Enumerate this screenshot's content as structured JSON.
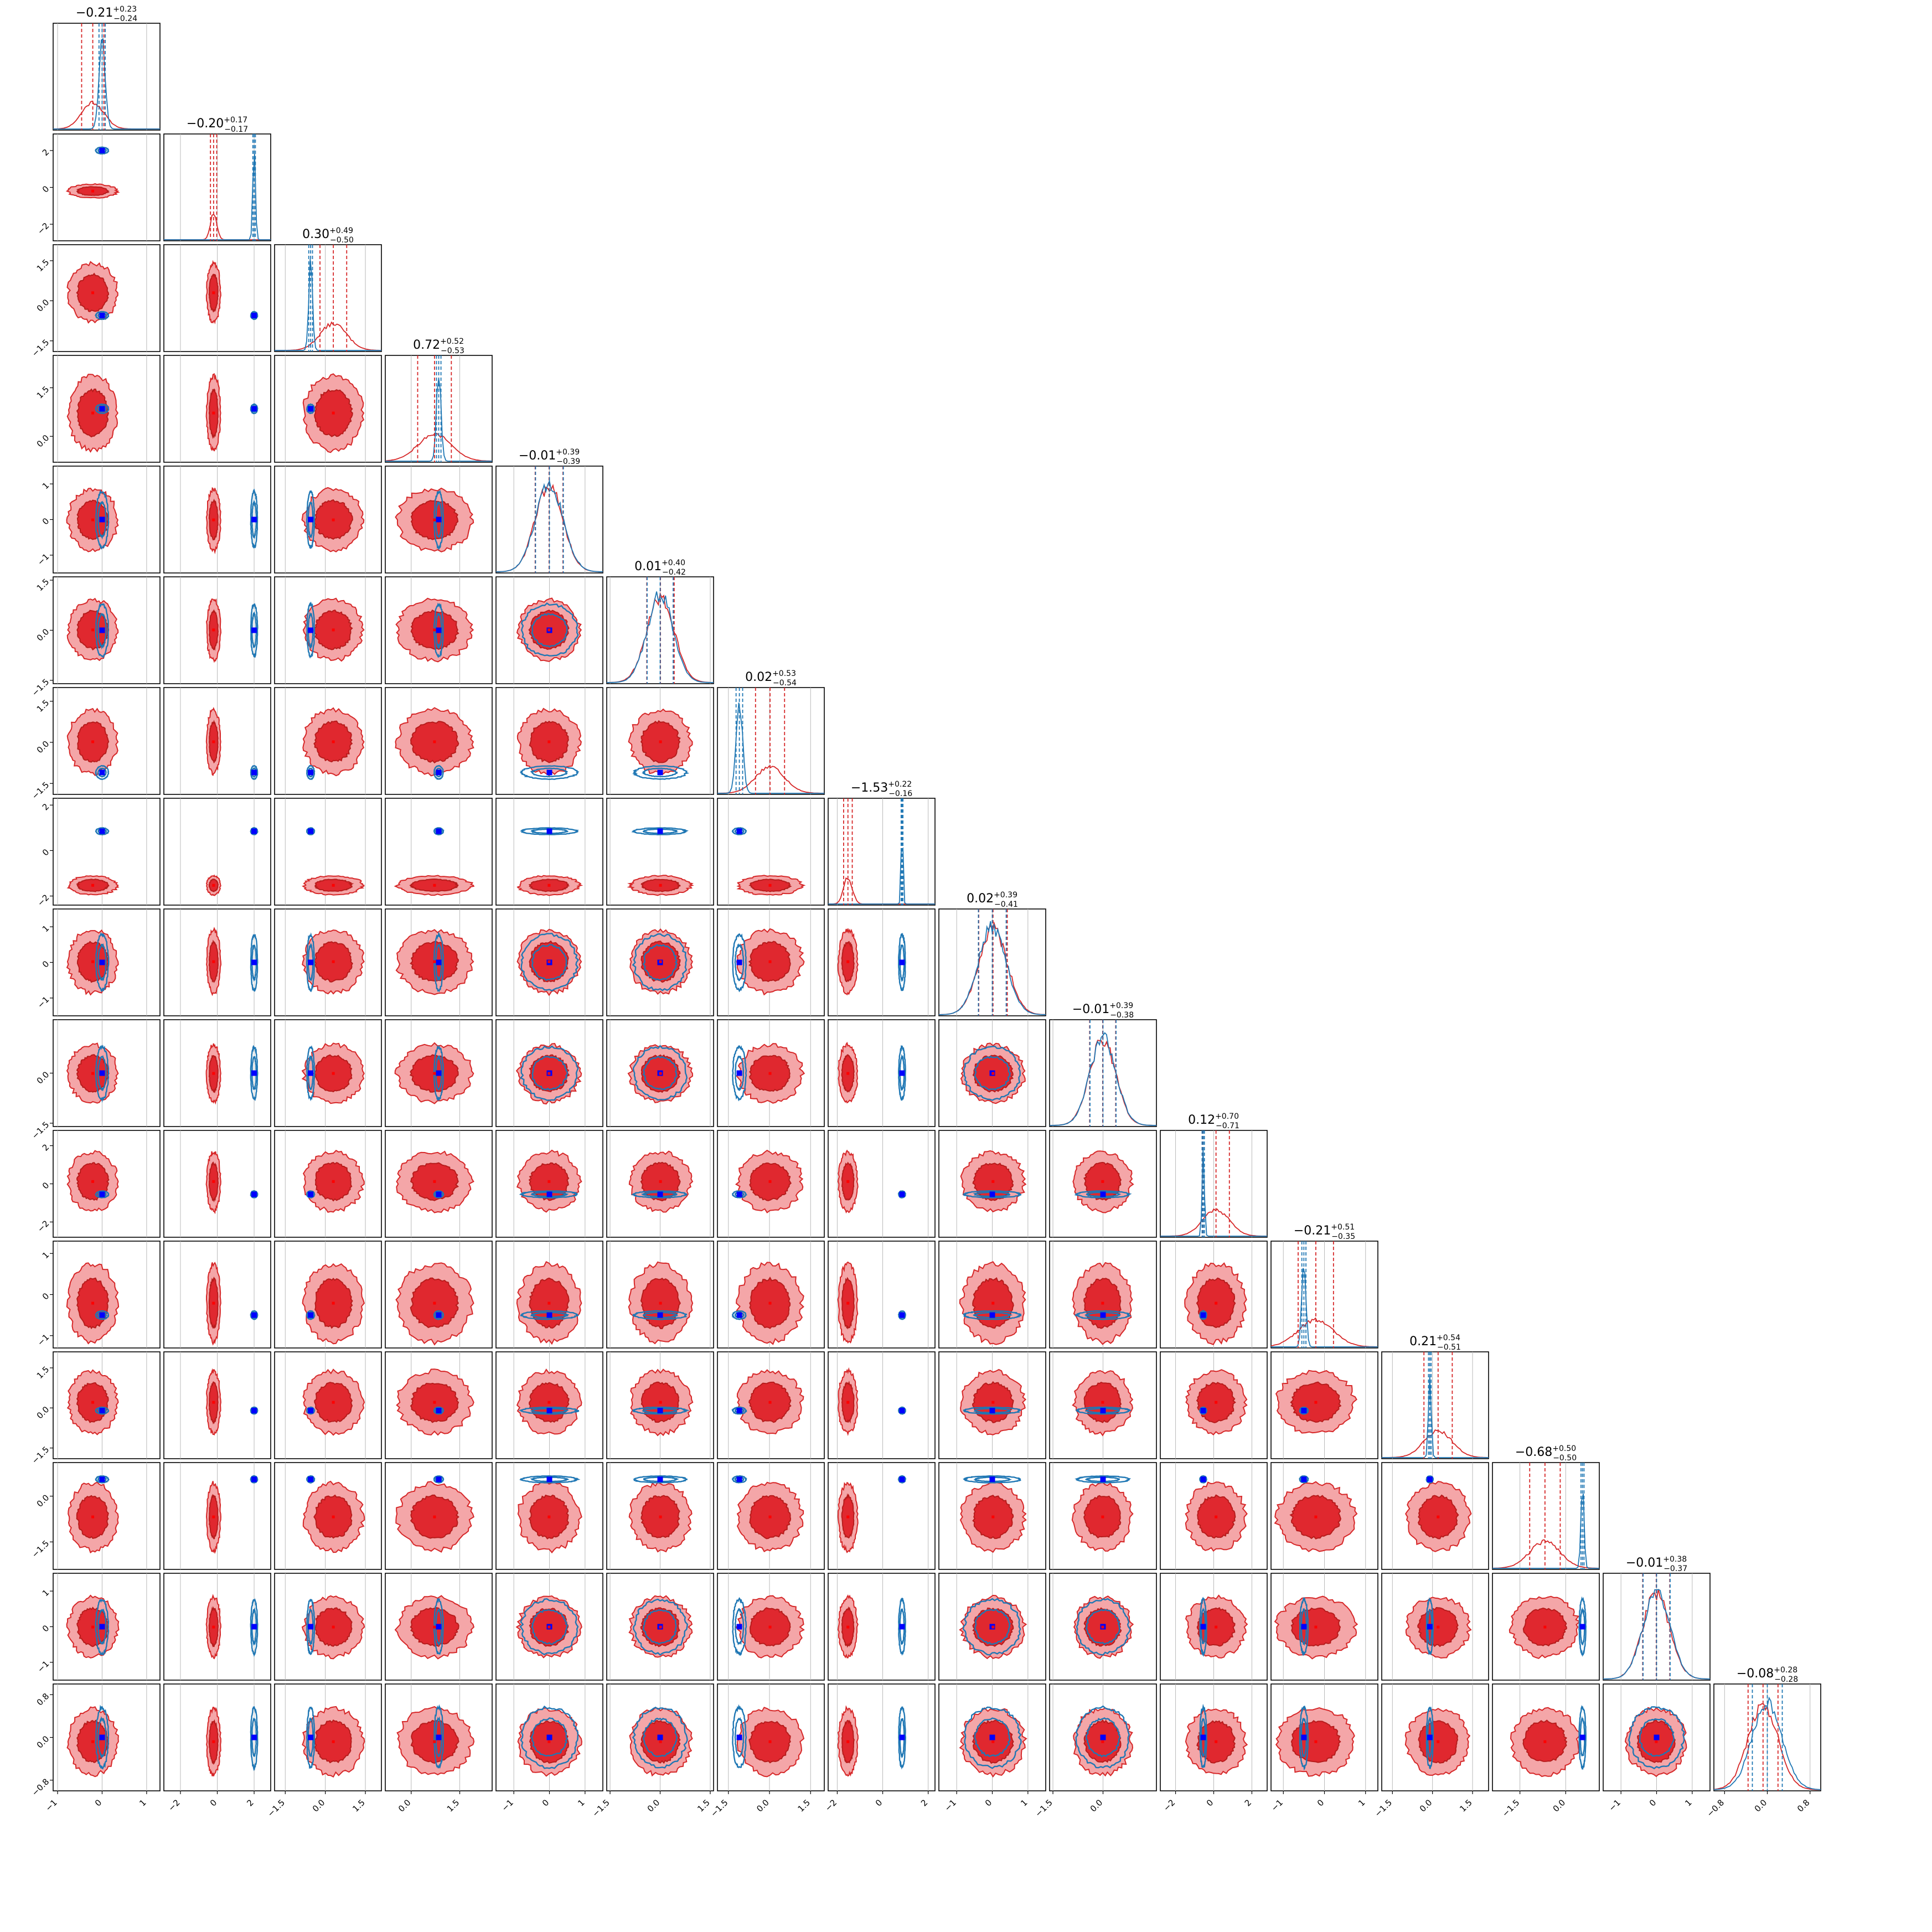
{
  "colors": {
    "red_series": "#d62728",
    "red_dark": "#b71c1c",
    "red_fill_light": "#f4a6a8",
    "red_fill_dark": "#e0282f",
    "blue_series": "#1f77b4",
    "blue_dark": "#1f3fa8",
    "truth_marker": "#0000ff",
    "red_marker": "#ff0000",
    "grid": "#b9b9b9"
  },
  "chart_data": {
    "type": "corner",
    "n_params": 16,
    "grid": true,
    "series": [
      {
        "color": "red",
        "kind": "posterior (filled contours)"
      },
      {
        "color": "blue",
        "kind": "posterior (line contours)"
      }
    ],
    "params": [
      {
        "center_red": -0.21,
        "sd_red": 0.25,
        "center_blue": 0.0,
        "sd_blue": 0.07,
        "range": [
          -1.1,
          1.3
        ],
        "ticks": [
          -1,
          0,
          1
        ],
        "tick_labels": [
          "−1",
          "0",
          "1"
        ],
        "title": {
          "value": "−0.21",
          "plus": "+0.23",
          "minus": "−0.24"
        }
      },
      {
        "center_red": -0.2,
        "sd_red": 0.17,
        "center_blue": 2.0,
        "sd_blue": 0.07,
        "range": [
          -2.9,
          2.9
        ],
        "ticks": [
          -2,
          0,
          2
        ],
        "tick_labels": [
          "−2",
          "0",
          "2"
        ],
        "title": {
          "value": "−0.20",
          "plus": "+0.17",
          "minus": "−0.17"
        }
      },
      {
        "center_red": 0.3,
        "sd_red": 0.5,
        "center_blue": -0.55,
        "sd_blue": 0.07,
        "range": [
          -1.9,
          2.1
        ],
        "ticks": [
          -1.5,
          0.0,
          1.5
        ],
        "tick_labels": [
          "−1.5",
          "0.0",
          "1.5"
        ],
        "title": {
          "value": "0.30",
          "plus": "+0.49",
          "minus": "−0.50"
        }
      },
      {
        "center_red": 0.72,
        "sd_red": 0.52,
        "center_blue": 0.85,
        "sd_blue": 0.07,
        "range": [
          -0.8,
          2.5
        ],
        "ticks": [
          0.0,
          1.5
        ],
        "tick_labels": [
          "0.0",
          "1.5"
        ],
        "title": {
          "value": "0.72",
          "plus": "+0.52",
          "minus": "−0.53"
        }
      },
      {
        "center_red": -0.01,
        "sd_red": 0.39,
        "center_blue": 0.0,
        "sd_blue": 0.39,
        "range": [
          -1.5,
          1.5
        ],
        "ticks": [
          -1,
          0,
          1
        ],
        "tick_labels": [
          "−1",
          "0",
          "1"
        ],
        "title": {
          "value": "−0.01",
          "plus": "+0.39",
          "minus": "−0.39"
        }
      },
      {
        "center_red": 0.01,
        "sd_red": 0.41,
        "center_blue": 0.0,
        "sd_blue": 0.39,
        "range": [
          -1.6,
          1.6
        ],
        "ticks": [
          -1.5,
          0.0,
          1.5
        ],
        "tick_labels": [
          "−1.5",
          "0.0",
          "1.5"
        ],
        "title": {
          "value": "0.01",
          "plus": "+0.40",
          "minus": "−0.42"
        }
      },
      {
        "center_red": 0.02,
        "sd_red": 0.53,
        "center_blue": -1.1,
        "sd_blue": 0.12,
        "range": [
          -1.9,
          2.0
        ],
        "ticks": [
          -1.5,
          0.0,
          1.5
        ],
        "tick_labels": [
          "−1.5",
          "0.0",
          "1.5"
        ],
        "title": {
          "value": "0.02",
          "plus": "+0.53",
          "minus": "−0.54"
        }
      },
      {
        "center_red": -1.53,
        "sd_red": 0.19,
        "center_blue": 0.85,
        "sd_blue": 0.04,
        "range": [
          -2.4,
          2.3
        ],
        "ticks": [
          -2,
          0,
          2
        ],
        "tick_labels": [
          "−2",
          "0",
          "2"
        ],
        "title": {
          "value": "−1.53",
          "plus": "+0.22",
          "minus": "−0.16"
        }
      },
      {
        "center_red": 0.02,
        "sd_red": 0.4,
        "center_blue": 0.0,
        "sd_blue": 0.39,
        "range": [
          -1.5,
          1.5
        ],
        "ticks": [
          -1,
          0,
          1
        ],
        "tick_labels": [
          "−1",
          "0",
          "1"
        ],
        "title": {
          "value": "0.02",
          "plus": "+0.39",
          "minus": "−0.41"
        }
      },
      {
        "center_red": -0.01,
        "sd_red": 0.39,
        "center_blue": 0.0,
        "sd_blue": 0.39,
        "range": [
          -1.6,
          1.6
        ],
        "ticks": [
          -1.5,
          0.0
        ],
        "tick_labels": [
          "−1.5",
          "0.0"
        ],
        "title": {
          "value": "−0.01",
          "plus": "+0.39",
          "minus": "−0.38"
        }
      },
      {
        "center_red": 0.12,
        "sd_red": 0.7,
        "center_blue": -0.55,
        "sd_blue": 0.06,
        "range": [
          -2.8,
          2.8
        ],
        "ticks": [
          -2,
          0,
          2
        ],
        "tick_labels": [
          "−2",
          "0",
          "2"
        ],
        "title": {
          "value": "0.12",
          "plus": "+0.70",
          "minus": "−0.71"
        }
      },
      {
        "center_red": -0.21,
        "sd_red": 0.43,
        "center_blue": -0.5,
        "sd_blue": 0.05,
        "range": [
          -1.3,
          1.3
        ],
        "ticks": [
          -1,
          0,
          1
        ],
        "tick_labels": [
          "−1",
          "0",
          "1"
        ],
        "title": {
          "value": "−0.21",
          "plus": "+0.51",
          "minus": "−0.35"
        }
      },
      {
        "center_red": 0.21,
        "sd_red": 0.53,
        "center_blue": -0.1,
        "sd_blue": 0.05,
        "range": [
          -1.9,
          2.1
        ],
        "ticks": [
          -1.5,
          0.0,
          1.5
        ],
        "tick_labels": [
          "−1.5",
          "0.0",
          "1.5"
        ],
        "title": {
          "value": "0.21",
          "plus": "+0.54",
          "minus": "−0.51"
        }
      },
      {
        "center_red": -0.68,
        "sd_red": 0.5,
        "center_blue": 0.55,
        "sd_blue": 0.05,
        "range": [
          -2.4,
          1.1
        ],
        "ticks": [
          -1.5,
          0.0
        ],
        "tick_labels": [
          "−1.5",
          "0.0"
        ],
        "title": {
          "value": "−0.68",
          "plus": "+0.50",
          "minus": "−0.50"
        }
      },
      {
        "center_red": -0.01,
        "sd_red": 0.38,
        "center_blue": 0.0,
        "sd_blue": 0.38,
        "range": [
          -1.5,
          1.5
        ],
        "ticks": [
          -1,
          0,
          1
        ],
        "tick_labels": [
          "−1",
          "0",
          "1"
        ],
        "title": {
          "value": "−0.01",
          "plus": "+0.38",
          "minus": "−0.37"
        }
      },
      {
        "center_red": -0.08,
        "sd_red": 0.28,
        "center_blue": 0.0,
        "sd_blue": 0.28,
        "range": [
          -1.0,
          1.0
        ],
        "ticks": [
          -0.8,
          0.0,
          0.8
        ],
        "tick_labels": [
          "−0.8",
          "0.0",
          "0.8"
        ],
        "title": {
          "value": "−0.08",
          "plus": "+0.28",
          "minus": "−0.28"
        }
      }
    ]
  }
}
